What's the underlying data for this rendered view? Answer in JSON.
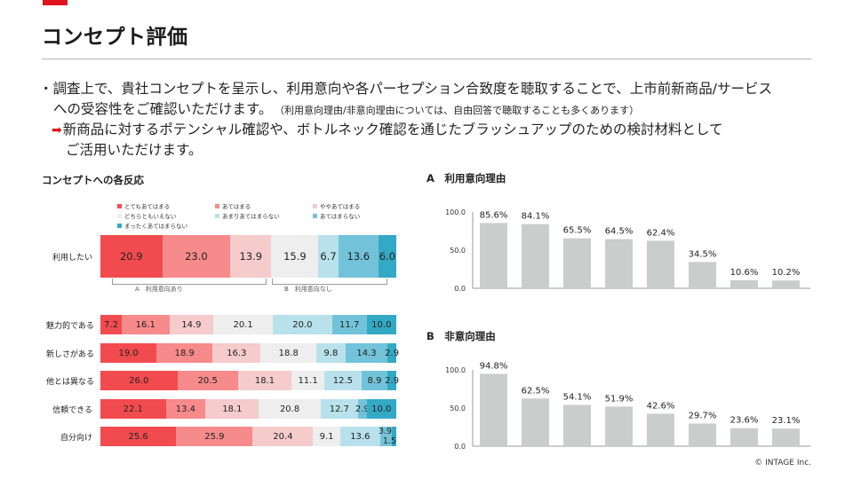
{
  "title": "コンセプト評価",
  "bullets": {
    "line1": "・調査上で、貴社コンセプトを呈示し、利用意向や各パーセプション合致度を聴取することで、上市前新商品/サービス",
    "line2": "への受容性をご確認いただけます。",
    "line2_note": "（利用意向理由/非意向理由については、自由回答で聴取することも多くあります）",
    "arrow": "➡",
    "line3": "新商品に対するポテンシャル確認や、ボトルネック確認を通じたブラッシュアップのための検討材料として",
    "line4": "ご活用いただけます。"
  },
  "left_section_title": "コンセプトへの各反応",
  "legend": [
    {
      "label": "とてもあてはまる",
      "color": "#f24b4f"
    },
    {
      "label": "あてはまる",
      "color": "#f78a8b"
    },
    {
      "label": "ややあてはまる",
      "color": "#f6cbcb"
    },
    {
      "label": "どちらともいえない",
      "color": "#eeeeee"
    },
    {
      "label": "あまりあてはまらない",
      "color": "#b8e1ec"
    },
    {
      "label": "あてはまらない",
      "color": "#72c3d9"
    },
    {
      "label": "まったくあてはまらない",
      "color": "#34a9c6"
    }
  ],
  "group_labels": {
    "yes": "A　利用意向あり",
    "no": "B　利用意向なし"
  },
  "chart_data": [
    {
      "type": "bar",
      "orientation": "horizontal-stacked-100",
      "categories": [
        "利用したい"
      ],
      "series": [
        {
          "name": "とてもあてはまる",
          "values": [
            20.9
          ]
        },
        {
          "name": "あてはまる",
          "values": [
            23.0
          ]
        },
        {
          "name": "ややあてはまる",
          "values": [
            13.9
          ]
        },
        {
          "name": "どちらともいえない",
          "values": [
            15.9
          ]
        },
        {
          "name": "あまりあてはまらない",
          "values": [
            6.7
          ]
        },
        {
          "name": "あてはまらない",
          "values": [
            13.6
          ]
        },
        {
          "name": "まったくあてはまらない",
          "values": [
            6.0
          ]
        }
      ]
    },
    {
      "type": "bar",
      "orientation": "horizontal-stacked-100",
      "categories": [
        "魅力的である",
        "新しさがある",
        "他とは異なる",
        "信頼できる",
        "自分向け"
      ],
      "series": [
        {
          "name": "とてもあてはまる",
          "values": [
            7.2,
            19.0,
            26.0,
            22.1,
            25.6
          ]
        },
        {
          "name": "あてはまる",
          "values": [
            16.1,
            18.9,
            20.5,
            13.4,
            25.9
          ]
        },
        {
          "name": "ややあてはまる",
          "values": [
            14.9,
            16.3,
            18.1,
            18.1,
            20.4
          ]
        },
        {
          "name": "どちらともいえない",
          "values": [
            20.1,
            18.8,
            11.1,
            20.8,
            9.1
          ]
        },
        {
          "name": "あまりあてはまらない",
          "values": [
            20.0,
            9.8,
            12.5,
            12.7,
            13.6
          ]
        },
        {
          "name": "あてはまらない",
          "values": [
            11.7,
            14.3,
            8.9,
            2.9,
            3.9
          ]
        },
        {
          "name": "まったくあてはまらない",
          "values": [
            10.0,
            2.9,
            2.9,
            10.0,
            1.5
          ]
        }
      ]
    },
    {
      "type": "bar",
      "title": "A　利用意向理由",
      "values": [
        85.6,
        84.1,
        65.5,
        64.5,
        62.4,
        34.5,
        10.6,
        10.2
      ],
      "labels": [
        "85.6%",
        "84.1%",
        "65.5%",
        "64.5%",
        "62.4%",
        "34.5%",
        "10.6%",
        "10.2%"
      ],
      "yticks": [
        "100.0",
        "50.0",
        "0.0"
      ],
      "ylim": [
        0,
        100
      ]
    },
    {
      "type": "bar",
      "title": "B　非意向理由",
      "values": [
        94.8,
        62.5,
        54.1,
        51.9,
        42.6,
        29.7,
        23.6,
        23.1
      ],
      "labels": [
        "94.8%",
        "62.5%",
        "54.1%",
        "51.9%",
        "42.6%",
        "29.7%",
        "23.6%",
        "23.1%"
      ],
      "yticks": [
        "100.0",
        "50.0",
        "0.0"
      ],
      "ylim": [
        0,
        100
      ]
    }
  ],
  "copyright": "© INTAGE Inc."
}
